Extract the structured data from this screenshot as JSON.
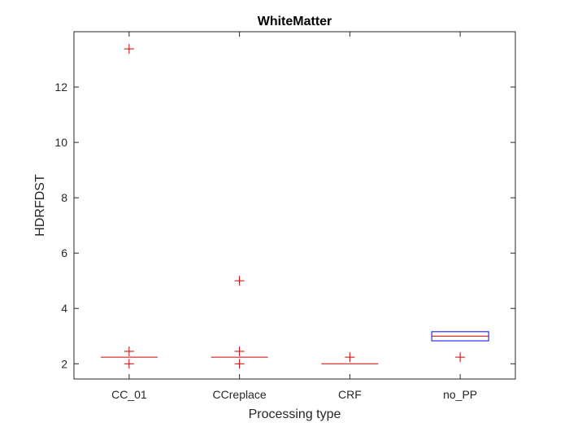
{
  "chart_data": {
    "type": "boxplot",
    "title": "WhiteMatter",
    "xlabel": "Processing type",
    "ylabel": "HDRFDST",
    "ylim": [
      1.45,
      14
    ],
    "yticks": [
      2,
      4,
      6,
      8,
      10,
      12
    ],
    "categories": [
      "CC_01",
      "CCreplace",
      "CRF",
      "no_PP"
    ],
    "boxes": [
      {
        "category": "CC_01",
        "q1": 2.24,
        "median": 2.24,
        "q3": 2.24,
        "whisker_low": 2.24,
        "whisker_high": 2.24,
        "outliers": [
          13.38,
          2.45,
          2.0
        ]
      },
      {
        "category": "CCreplace",
        "q1": 2.24,
        "median": 2.24,
        "q3": 2.24,
        "whisker_low": 2.24,
        "whisker_high": 2.24,
        "outliers": [
          5.0,
          2.45,
          2.0
        ]
      },
      {
        "category": "CRF",
        "q1": 2.0,
        "median": 2.0,
        "q3": 2.0,
        "whisker_low": 2.0,
        "whisker_high": 2.0,
        "outliers": [
          2.24
        ]
      },
      {
        "category": "no_PP",
        "q1": 2.83,
        "median": 3.0,
        "q3": 3.16,
        "whisker_low": 2.83,
        "whisker_high": 3.16,
        "outliers": [
          2.24
        ]
      }
    ],
    "colors": {
      "median": "#cc0000",
      "outlier": "#cc0000",
      "box": "#0000ff",
      "axis": "#262626"
    },
    "grid": false,
    "legend": "none"
  }
}
